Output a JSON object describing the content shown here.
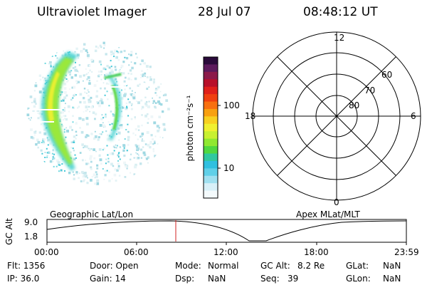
{
  "header": {
    "title": "Ultraviolet Imager",
    "date": "28 Jul 07",
    "time": "08:48:12 UT"
  },
  "colorbar": {
    "label": "photon cm⁻²s⁻¹",
    "ticks": [
      "100",
      "10"
    ],
    "colors": [
      "#2a0a3a",
      "#5c1a5c",
      "#8c1a4a",
      "#b8102a",
      "#e0201a",
      "#f04010",
      "#f87010",
      "#f8a010",
      "#f8d020",
      "#f0f030",
      "#c8f030",
      "#90e830",
      "#50d840",
      "#30c8a0",
      "#30c0e0",
      "#60d0e8",
      "#a0e0f0",
      "#d8f0f8",
      "#f4fafc"
    ]
  },
  "polar": {
    "mlt_labels": {
      "top": "12",
      "bottom": "0",
      "left": "18",
      "right": "6"
    },
    "lat_labels": [
      "60",
      "70",
      "80"
    ]
  },
  "timeline": {
    "left_title": "Geographic Lat/Lon",
    "right_title": "Apex MLat/MLT",
    "ylabel": "GC Alt",
    "y_ticks": [
      "9.0",
      "1.8"
    ],
    "x_ticks": [
      "00:00",
      "06:00",
      "12:00",
      "18:00",
      "23:59"
    ],
    "marker_color": "#d02020"
  },
  "info": {
    "flt": "Flt: 1356",
    "door": "Door: Open",
    "mode_label": "Mode:",
    "mode_value": "Normal",
    "gcalt_label": "GC Alt:",
    "gcalt_value": "8.2 Re",
    "glat_label": "GLat:",
    "glat_value": "NaN",
    "ip": "IP: 36.0",
    "gain": "Gain: 14",
    "dsp_label": "Dsp:",
    "dsp_value": "NaN",
    "seq_label": "Seq:",
    "seq_value": "39",
    "glon_label": "GLon:",
    "glon_value": "NaN"
  }
}
